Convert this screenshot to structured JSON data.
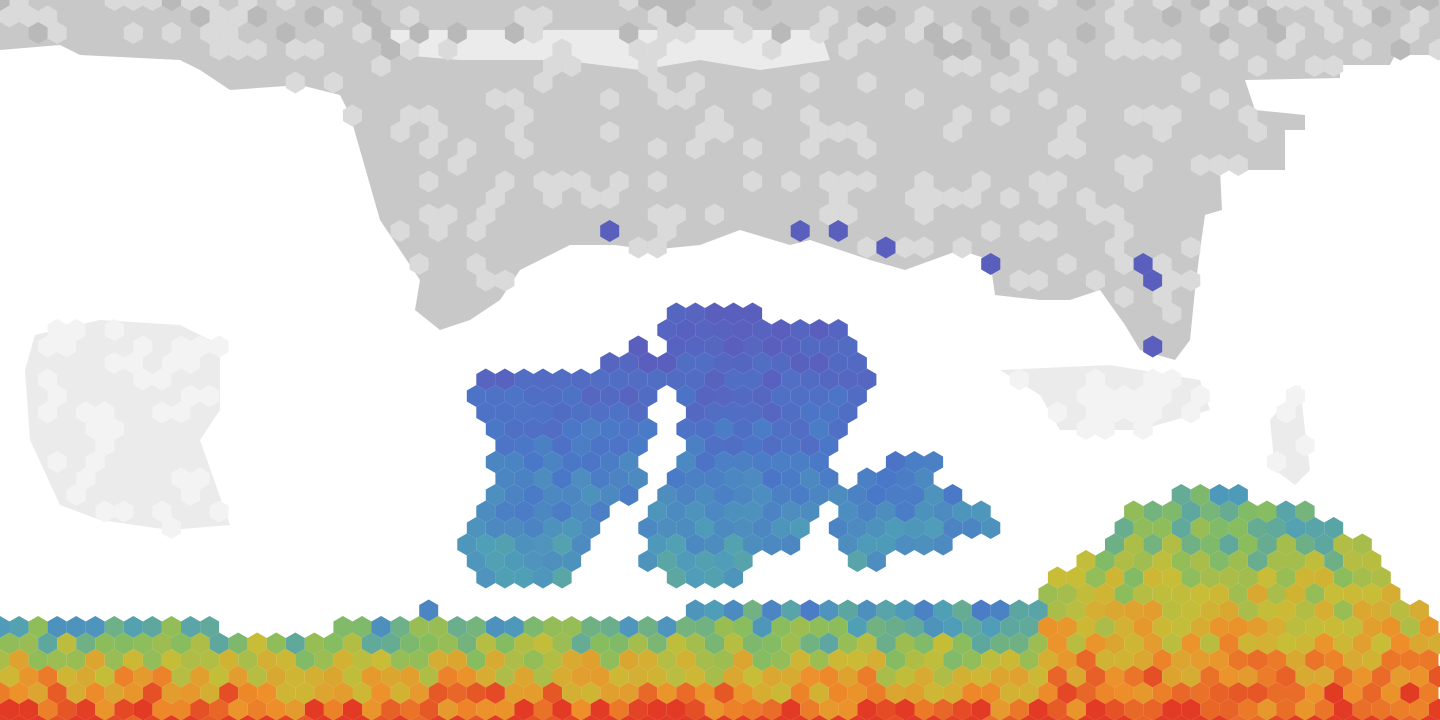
{
  "map": {
    "projection": "equirectangular",
    "grid": "hexagonal cells",
    "background_color": "#ffffff",
    "colors": {
      "ice_gray": "#b9b9b9",
      "ice_mid": "#c8c8c8",
      "ice_light": "#dadada",
      "ice_pale": "#ebebeb",
      "cold_violet": "#5a5fbe",
      "cold_blue": "#4a78c8",
      "teal": "#4f9fb7",
      "green": "#86bd60",
      "yellow": "#c8bd36",
      "orange": "#ee8f2a",
      "red": "#e23a24"
    },
    "legend": "",
    "title": ""
  }
}
